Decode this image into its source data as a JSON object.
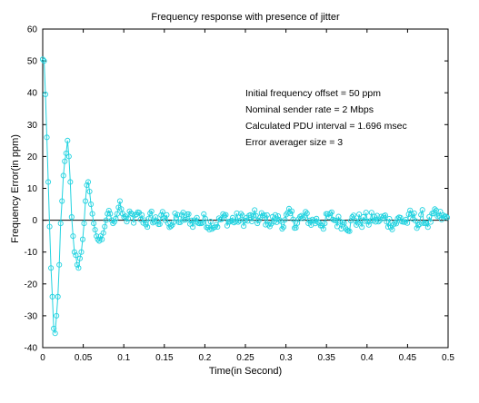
{
  "chart_data": {
    "type": "line",
    "title": "Frequency response with presence of jitter",
    "xlabel": "Time(in Second)",
    "ylabel": "Frequency Error(in ppm)",
    "xlim": [
      0,
      0.5
    ],
    "ylim": [
      -40,
      60
    ],
    "xticks": [
      0,
      0.05,
      0.1,
      0.15,
      0.2,
      0.25,
      0.3,
      0.35,
      0.4,
      0.45,
      0.5
    ],
    "xtick_labels": [
      "0",
      "0.05",
      "0.1",
      "0.15",
      "0.2",
      "0.25",
      "0.3",
      "0.35",
      "0.4",
      "0.45",
      "0.5"
    ],
    "yticks": [
      -40,
      -30,
      -20,
      -10,
      0,
      10,
      20,
      30,
      40,
      50,
      60
    ],
    "ytick_labels": [
      "-40",
      "-30",
      "-20",
      "-10",
      "0",
      "10",
      "20",
      "30",
      "40",
      "50",
      "60"
    ],
    "grid": false,
    "series_color": "#22d3e0",
    "zero_line_color": "#000000",
    "marker": "circle",
    "annotations": [
      "Initial frequency offset = 50 ppm",
      "Nominal sender rate = 2 Mbps",
      "Calculated PDU interval = 1.696 msec",
      "Error averager size = 3"
    ],
    "series": [
      {
        "sample_interval": 0.001696,
        "x": [
          0,
          0.0017,
          0.0034,
          0.0051,
          0.0068,
          0.0085,
          0.0102,
          0.0119,
          0.0136,
          0.0153,
          0.017,
          0.0187,
          0.0204,
          0.0221,
          0.0238,
          0.0255,
          0.0272,
          0.0289,
          0.0306,
          0.0323,
          0.034,
          0.0357,
          0.0374,
          0.0391,
          0.0408,
          0.0425,
          0.0442,
          0.0459,
          0.0476,
          0.0493,
          0.051,
          0.0527,
          0.0544,
          0.0561,
          0.0578,
          0.0595,
          0.0612,
          0.0629,
          0.0646,
          0.0663,
          0.068,
          0.0697,
          0.0714,
          0.0731,
          0.0748,
          0.0765,
          0.0782,
          0.0799,
          0.0816,
          0.0833,
          0.085,
          0.0867,
          0.0884,
          0.0901,
          0.0918,
          0.0935,
          0.0952,
          0.0969,
          0.0986,
          0.1003
        ],
        "values": [
          50.5,
          50,
          39.5,
          26,
          12,
          -2,
          -15,
          -24,
          -34,
          -35.5,
          -30,
          -24,
          -14,
          -1,
          6,
          14,
          18.5,
          21,
          25,
          20,
          12,
          1,
          -5,
          -10,
          -11,
          -14,
          -15,
          -12,
          -10,
          -6,
          -1,
          6,
          11,
          12,
          9,
          5,
          2,
          -1,
          -3,
          -5,
          -6,
          -6.5,
          -5,
          -6,
          -4,
          -2,
          0,
          2,
          3,
          2,
          0,
          -1,
          -0.5,
          0.5,
          2,
          4,
          6,
          3.5,
          2,
          1
        ]
      }
    ]
  }
}
